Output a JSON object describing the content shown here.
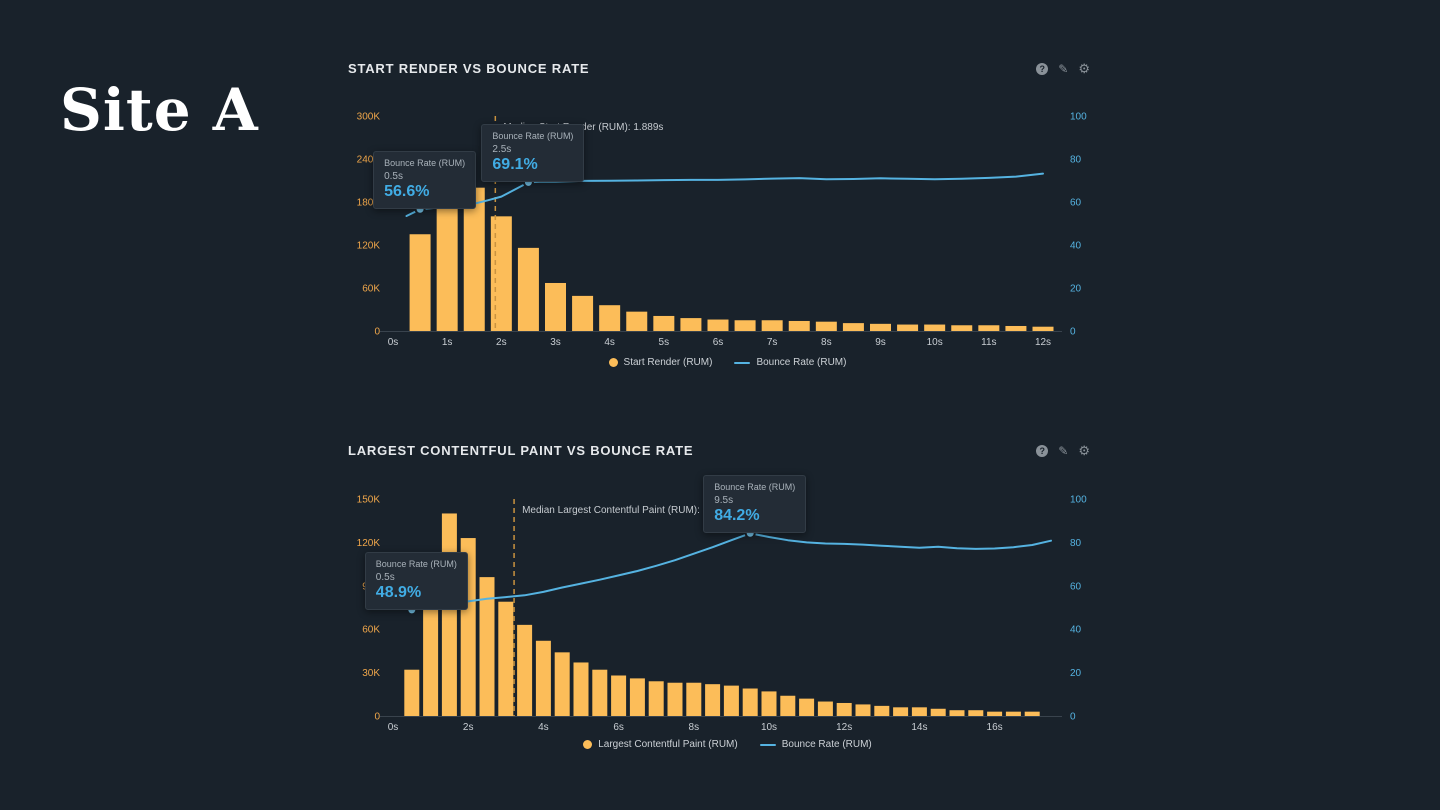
{
  "page": {
    "site_label": "Site A"
  },
  "colors": {
    "bar": "#fcbd59",
    "line": "#55b3e1",
    "left_axis": "#efa64a",
    "right_axis": "#55b3e1",
    "x_axis": "#c9ced3",
    "median": "#c9933f",
    "axis_line": "#39434d",
    "median_label": "#c6cbd0",
    "marker_fill": "#74c3e9",
    "tooltip_value": "#41ace4"
  },
  "icons": [
    {
      "name": "help-icon",
      "glyph": "?"
    },
    {
      "name": "edit-icon",
      "glyph": "✎"
    },
    {
      "name": "settings-icon",
      "glyph": "⚙"
    }
  ],
  "chart_data": [
    {
      "type": "bar",
      "title": "START RENDER VS BOUNCE RATE",
      "bar_series": {
        "name": "Start Render (RUM)",
        "x_s": [
          0.5,
          1,
          1.5,
          2,
          2.5,
          3,
          3.5,
          4,
          4.5,
          5,
          5.5,
          6,
          6.5,
          7,
          7.5,
          8,
          8.5,
          9,
          9.5,
          10,
          10.5,
          11,
          11.5,
          12
        ],
        "values_k": [
          135,
          212,
          200,
          160,
          116,
          67,
          49,
          36,
          27,
          21,
          18,
          16,
          15,
          15,
          14,
          13,
          11,
          10,
          9,
          9,
          8,
          8,
          7,
          6
        ]
      },
      "line_series": {
        "name": "Bounce Rate (RUM)",
        "unit": "%",
        "points": [
          [
            0.25,
            53.5
          ],
          [
            0.5,
            56.6
          ],
          [
            0.75,
            57.2
          ],
          [
            1,
            57.8
          ],
          [
            1.25,
            58.3
          ],
          [
            1.5,
            59.2
          ],
          [
            1.75,
            60.8
          ],
          [
            2,
            62.5
          ],
          [
            2.25,
            65.8
          ],
          [
            2.5,
            69.1
          ],
          [
            2.75,
            69.5
          ],
          [
            3,
            69.4
          ],
          [
            3.5,
            69.8
          ],
          [
            4,
            69.9
          ],
          [
            4.5,
            70.0
          ],
          [
            5,
            70.2
          ],
          [
            5.5,
            70.3
          ],
          [
            6,
            70.3
          ],
          [
            6.5,
            70.5
          ],
          [
            7,
            70.9
          ],
          [
            7.5,
            71.1
          ],
          [
            8,
            70.6
          ],
          [
            8.5,
            70.7
          ],
          [
            9,
            71.0
          ],
          [
            9.5,
            70.8
          ],
          [
            10,
            70.6
          ],
          [
            10.5,
            70.8
          ],
          [
            11,
            71.2
          ],
          [
            11.5,
            71.8
          ],
          [
            12,
            73.2
          ]
        ]
      },
      "left_axis": {
        "max_k": 300,
        "ticks_k": [
          0,
          60,
          120,
          180,
          240,
          300
        ],
        "labels": [
          "0",
          "60K",
          "120K",
          "180K",
          "240K",
          "300K"
        ]
      },
      "right_axis": {
        "max": 100,
        "ticks": [
          0,
          20,
          40,
          60,
          80,
          100
        ]
      },
      "x_axis": {
        "ticks_s": [
          0,
          1,
          2,
          3,
          4,
          5,
          6,
          7,
          8,
          9,
          10,
          11,
          12
        ],
        "labels": [
          "0s",
          "1s",
          "2s",
          "3s",
          "4s",
          "5s",
          "6s",
          "7s",
          "8s",
          "9s",
          "10s",
          "11s",
          "12s"
        ]
      },
      "median_line": {
        "x_s": 1.889,
        "label": "Median Start Render (RUM): 1.889s"
      },
      "tooltips": [
        {
          "series": "Bounce Rate (RUM)",
          "x_label": "0.5s",
          "value_label": "56.6%",
          "x_s": 0.5,
          "value_pct": 56.6
        },
        {
          "series": "Bounce Rate (RUM)",
          "x_label": "2.5s",
          "value_label": "69.1%",
          "x_s": 2.5,
          "value_pct": 69.1
        }
      ],
      "legend": [
        {
          "name": "Start Render (RUM)",
          "swatch": "bar"
        },
        {
          "name": "Bounce Rate (RUM)",
          "swatch": "line"
        }
      ]
    },
    {
      "type": "bar",
      "title": "LARGEST CONTENTFUL PAINT VS BOUNCE RATE",
      "bar_series": {
        "name": "Largest Contentful Paint (RUM)",
        "x_s": [
          0.5,
          1,
          1.5,
          2,
          2.5,
          3,
          3.5,
          4,
          4.5,
          5,
          5.5,
          6,
          6.5,
          7,
          7.5,
          8,
          8.5,
          9,
          9.5,
          10,
          10.5,
          11,
          11.5,
          12,
          12.5,
          13,
          13.5,
          14,
          14.5,
          15,
          15.5,
          16,
          16.5,
          17
        ],
        "values_k": [
          32,
          90,
          140,
          123,
          96,
          79,
          63,
          52,
          44,
          37,
          32,
          28,
          26,
          24,
          23,
          23,
          22,
          21,
          19,
          17,
          14,
          12,
          10,
          9,
          8,
          7,
          6,
          6,
          5,
          4,
          4,
          3,
          3,
          3
        ]
      },
      "line_series": {
        "name": "Bounce Rate (RUM)",
        "unit": "%",
        "points": [
          [
            0.5,
            48.9
          ],
          [
            1,
            50.2
          ],
          [
            1.5,
            51.5
          ],
          [
            2,
            52.8
          ],
          [
            2.5,
            54.0
          ],
          [
            3,
            54.8
          ],
          [
            3.5,
            55.6
          ],
          [
            4,
            57.2
          ],
          [
            4.5,
            59.2
          ],
          [
            5,
            61.0
          ],
          [
            5.5,
            62.8
          ],
          [
            6,
            64.8
          ],
          [
            6.5,
            66.8
          ],
          [
            7,
            69.2
          ],
          [
            7.5,
            71.8
          ],
          [
            8,
            74.8
          ],
          [
            8.5,
            77.8
          ],
          [
            9,
            81.0
          ],
          [
            9.5,
            84.2
          ],
          [
            10,
            82.5
          ],
          [
            10.5,
            81.0
          ],
          [
            11,
            80.0
          ],
          [
            11.5,
            79.5
          ],
          [
            12,
            79.3
          ],
          [
            12.5,
            79.0
          ],
          [
            13,
            78.5
          ],
          [
            13.5,
            78.0
          ],
          [
            14,
            77.5
          ],
          [
            14.5,
            78.0
          ],
          [
            15,
            77.3
          ],
          [
            15.5,
            77.0
          ],
          [
            16,
            77.2
          ],
          [
            16.5,
            77.8
          ],
          [
            17,
            78.8
          ],
          [
            17.5,
            80.8
          ]
        ]
      },
      "left_axis": {
        "max_k": 150,
        "ticks_k": [
          0,
          30,
          60,
          90,
          120,
          150
        ],
        "labels": [
          "0",
          "30K",
          "60K",
          "90K",
          "120K",
          "150K"
        ]
      },
      "right_axis": {
        "max": 100,
        "ticks": [
          0,
          20,
          40,
          60,
          80,
          100
        ]
      },
      "x_axis": {
        "ticks_s": [
          0,
          2,
          4,
          6,
          8,
          10,
          12,
          14,
          16
        ],
        "labels": [
          "0s",
          "2s",
          "4s",
          "6s",
          "8s",
          "10s",
          "12s",
          "14s",
          "16s"
        ]
      },
      "median_line": {
        "x_s": 3.22,
        "label": "Median Largest Contentful Paint (RUM): 3.22s"
      },
      "tooltips": [
        {
          "series": "Bounce Rate (RUM)",
          "x_label": "0.5s",
          "value_label": "48.9%",
          "x_s": 0.5,
          "value_pct": 48.9
        },
        {
          "series": "Bounce Rate (RUM)",
          "x_label": "9.5s",
          "value_label": "84.2%",
          "x_s": 9.5,
          "value_pct": 84.2
        }
      ],
      "legend": [
        {
          "name": "Largest Contentful Paint (RUM)",
          "swatch": "bar"
        },
        {
          "name": "Bounce Rate (RUM)",
          "swatch": "line"
        }
      ]
    }
  ]
}
